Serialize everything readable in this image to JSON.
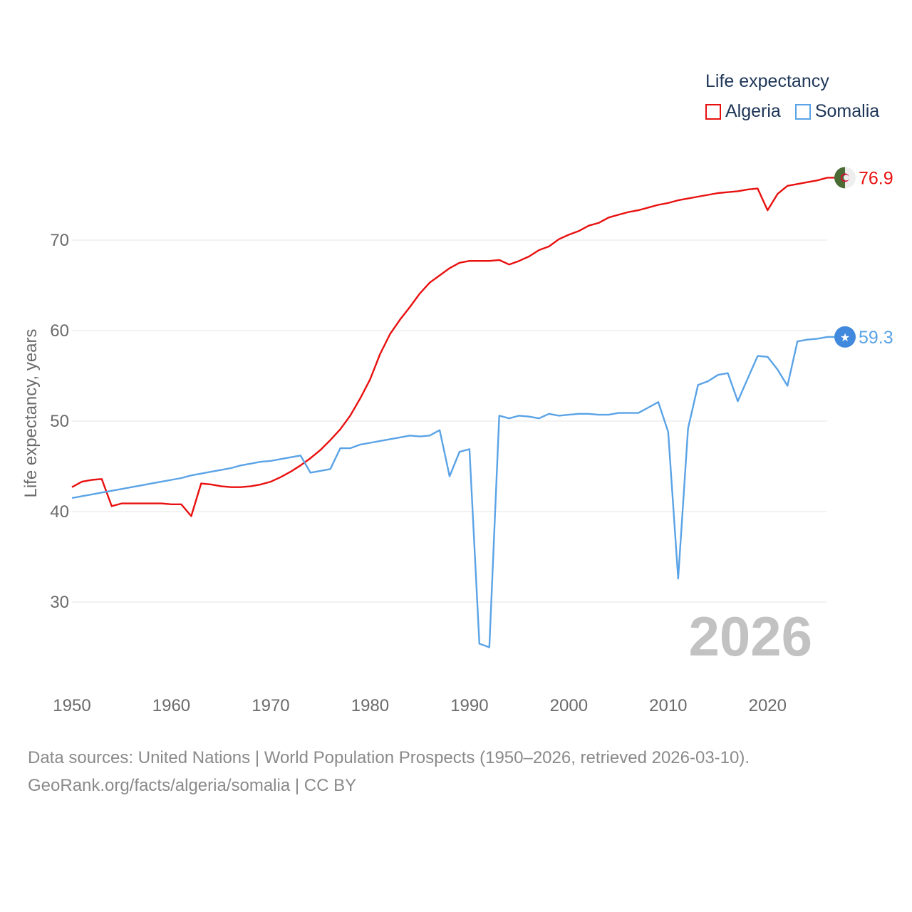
{
  "legend": {
    "title": "Life expectancy",
    "items": [
      {
        "name": "Algeria",
        "color": "#e8100f"
      },
      {
        "name": "Somalia",
        "color": "#5aa3e6"
      }
    ]
  },
  "footer": {
    "line1": "Data sources: United Nations | World Population Prospects (1950–2026, retrieved 2026-03-10).",
    "line2": "GeoRank.org/facts/algeria/somalia | CC BY"
  },
  "chart_data": {
    "type": "line",
    "ylabel": "Life expectancy, years",
    "xlabel": "",
    "year_label": "2026",
    "xlim": [
      1950,
      2026
    ],
    "ylim": [
      22,
      80
    ],
    "x_ticks": [
      1950,
      1960,
      1970,
      1980,
      1990,
      2000,
      2010,
      2020
    ],
    "y_ticks": [
      30,
      40,
      50,
      60,
      70
    ],
    "series": [
      {
        "name": "Algeria",
        "color": "#e8100f",
        "end_label": "76.9",
        "flag_icon": "algeria-flag-icon",
        "points": [
          [
            1950,
            42.7
          ],
          [
            1951,
            43.3
          ],
          [
            1952,
            43.5
          ],
          [
            1953,
            43.6
          ],
          [
            1954,
            40.6
          ],
          [
            1955,
            40.9
          ],
          [
            1956,
            40.9
          ],
          [
            1957,
            40.9
          ],
          [
            1958,
            40.9
          ],
          [
            1959,
            40.9
          ],
          [
            1960,
            40.8
          ],
          [
            1961,
            40.8
          ],
          [
            1962,
            39.5
          ],
          [
            1963,
            43.1
          ],
          [
            1964,
            43.0
          ],
          [
            1965,
            42.8
          ],
          [
            1966,
            42.7
          ],
          [
            1967,
            42.7
          ],
          [
            1968,
            42.8
          ],
          [
            1969,
            43.0
          ],
          [
            1970,
            43.3
          ],
          [
            1971,
            43.8
          ],
          [
            1972,
            44.4
          ],
          [
            1973,
            45.1
          ],
          [
            1974,
            45.9
          ],
          [
            1975,
            46.8
          ],
          [
            1976,
            47.9
          ],
          [
            1977,
            49.1
          ],
          [
            1978,
            50.6
          ],
          [
            1979,
            52.5
          ],
          [
            1980,
            54.6
          ],
          [
            1981,
            57.4
          ],
          [
            1982,
            59.6
          ],
          [
            1983,
            61.2
          ],
          [
            1984,
            62.6
          ],
          [
            1985,
            64.1
          ],
          [
            1986,
            65.3
          ],
          [
            1987,
            66.1
          ],
          [
            1988,
            66.9
          ],
          [
            1989,
            67.5
          ],
          [
            1990,
            67.7
          ],
          [
            1991,
            67.7
          ],
          [
            1992,
            67.7
          ],
          [
            1993,
            67.8
          ],
          [
            1994,
            67.3
          ],
          [
            1995,
            67.7
          ],
          [
            1996,
            68.2
          ],
          [
            1997,
            68.9
          ],
          [
            1998,
            69.3
          ],
          [
            1999,
            70.1
          ],
          [
            2000,
            70.6
          ],
          [
            2001,
            71.0
          ],
          [
            2002,
            71.6
          ],
          [
            2003,
            71.9
          ],
          [
            2004,
            72.5
          ],
          [
            2005,
            72.8
          ],
          [
            2006,
            73.1
          ],
          [
            2007,
            73.3
          ],
          [
            2008,
            73.6
          ],
          [
            2009,
            73.9
          ],
          [
            2010,
            74.1
          ],
          [
            2011,
            74.4
          ],
          [
            2012,
            74.6
          ],
          [
            2013,
            74.8
          ],
          [
            2014,
            75.0
          ],
          [
            2015,
            75.2
          ],
          [
            2016,
            75.3
          ],
          [
            2017,
            75.4
          ],
          [
            2018,
            75.6
          ],
          [
            2019,
            75.7
          ],
          [
            2020,
            73.3
          ],
          [
            2021,
            75.1
          ],
          [
            2022,
            76.0
          ],
          [
            2023,
            76.2
          ],
          [
            2024,
            76.4
          ],
          [
            2025,
            76.6
          ],
          [
            2026,
            76.9
          ]
        ]
      },
      {
        "name": "Somalia",
        "color": "#5aa3e6",
        "end_label": "59.3",
        "flag_icon": "somalia-flag-icon",
        "points": [
          [
            1950,
            41.5
          ],
          [
            1951,
            41.7
          ],
          [
            1952,
            41.9
          ],
          [
            1953,
            42.1
          ],
          [
            1954,
            42.3
          ],
          [
            1955,
            42.5
          ],
          [
            1956,
            42.7
          ],
          [
            1957,
            42.9
          ],
          [
            1958,
            43.1
          ],
          [
            1959,
            43.3
          ],
          [
            1960,
            43.5
          ],
          [
            1961,
            43.7
          ],
          [
            1962,
            44.0
          ],
          [
            1963,
            44.2
          ],
          [
            1964,
            44.4
          ],
          [
            1965,
            44.6
          ],
          [
            1966,
            44.8
          ],
          [
            1967,
            45.1
          ],
          [
            1968,
            45.3
          ],
          [
            1969,
            45.5
          ],
          [
            1970,
            45.6
          ],
          [
            1971,
            45.8
          ],
          [
            1972,
            46.0
          ],
          [
            1973,
            46.2
          ],
          [
            1974,
            44.3
          ],
          [
            1975,
            44.5
          ],
          [
            1976,
            44.7
          ],
          [
            1977,
            47.0
          ],
          [
            1978,
            47.0
          ],
          [
            1979,
            47.4
          ],
          [
            1980,
            47.6
          ],
          [
            1981,
            47.8
          ],
          [
            1982,
            48.0
          ],
          [
            1983,
            48.2
          ],
          [
            1984,
            48.4
          ],
          [
            1985,
            48.3
          ],
          [
            1986,
            48.4
          ],
          [
            1987,
            49.0
          ],
          [
            1988,
            43.9
          ],
          [
            1989,
            46.6
          ],
          [
            1990,
            46.9
          ],
          [
            1991,
            25.4
          ],
          [
            1992,
            25.0
          ],
          [
            1993,
            50.6
          ],
          [
            1994,
            50.3
          ],
          [
            1995,
            50.6
          ],
          [
            1996,
            50.5
          ],
          [
            1997,
            50.3
          ],
          [
            1998,
            50.8
          ],
          [
            1999,
            50.6
          ],
          [
            2000,
            50.7
          ],
          [
            2001,
            50.8
          ],
          [
            2002,
            50.8
          ],
          [
            2003,
            50.7
          ],
          [
            2004,
            50.7
          ],
          [
            2005,
            50.9
          ],
          [
            2006,
            50.9
          ],
          [
            2007,
            50.9
          ],
          [
            2008,
            51.5
          ],
          [
            2009,
            52.1
          ],
          [
            2010,
            48.8
          ],
          [
            2011,
            32.6
          ],
          [
            2012,
            49.2
          ],
          [
            2013,
            54.0
          ],
          [
            2014,
            54.4
          ],
          [
            2015,
            55.1
          ],
          [
            2016,
            55.3
          ],
          [
            2017,
            52.2
          ],
          [
            2018,
            54.7
          ],
          [
            2019,
            57.2
          ],
          [
            2020,
            57.1
          ],
          [
            2021,
            55.7
          ],
          [
            2022,
            53.9
          ],
          [
            2023,
            58.8
          ],
          [
            2024,
            59.0
          ],
          [
            2025,
            59.1
          ],
          [
            2026,
            59.3
          ]
        ]
      }
    ]
  }
}
